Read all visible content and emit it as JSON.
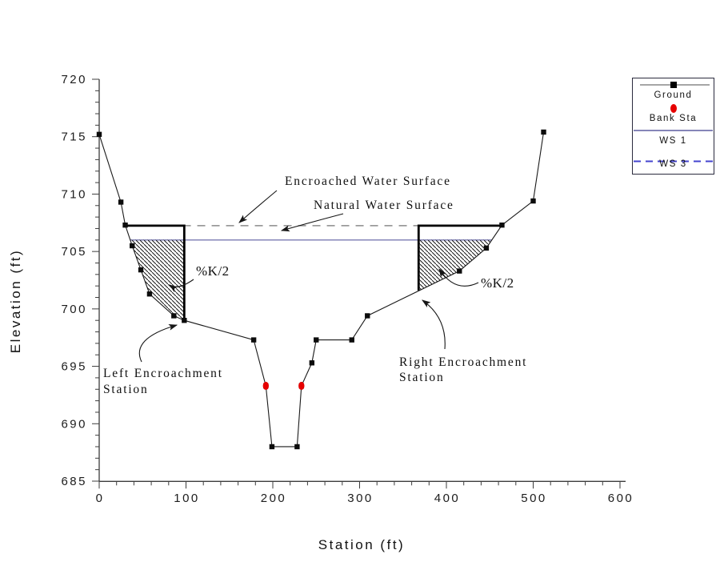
{
  "window": {
    "background": "#ffffff"
  },
  "chart_data": {
    "type": "line",
    "title": "",
    "xlabel": "Station (ft)",
    "ylabel": "Elevation (ft)",
    "xlim": [
      0,
      600
    ],
    "ylim": [
      685,
      720
    ],
    "x_major_ticks": [
      0,
      100,
      200,
      300,
      400,
      500,
      600
    ],
    "x_minor_step": 20,
    "y_major_ticks": [
      685,
      690,
      695,
      700,
      705,
      710,
      715,
      720
    ],
    "y_minor_step": 1,
    "grid": false,
    "legend_position": "top-right",
    "series": [
      {
        "name": "Ground",
        "type": "line-with-markers",
        "marker": "black-square",
        "color": "#1a1a1a",
        "points": [
          [
            0,
            715.2
          ],
          [
            25,
            709.3
          ],
          [
            30,
            707.3
          ],
          [
            38,
            705.5
          ],
          [
            48,
            703.4
          ],
          [
            58,
            701.3
          ],
          [
            86,
            699.4
          ],
          [
            98,
            699.0
          ],
          [
            178,
            697.3
          ],
          [
            192,
            693.3
          ],
          [
            199,
            688.0
          ],
          [
            228,
            688.0
          ],
          [
            233,
            693.3
          ],
          [
            245,
            695.3
          ],
          [
            250,
            697.3
          ],
          [
            291,
            697.3
          ],
          [
            309,
            699.4
          ],
          [
            415,
            703.3
          ],
          [
            446,
            705.3
          ],
          [
            464,
            707.3
          ],
          [
            500,
            709.4
          ],
          [
            512,
            715.4
          ]
        ]
      },
      {
        "name": "Bank Sta",
        "type": "markers",
        "marker": "red-ellipse",
        "color": "#e60000",
        "points": [
          [
            192,
            693.3
          ],
          [
            233,
            693.3
          ]
        ]
      },
      {
        "name": "WS 1",
        "type": "horizontal-line",
        "style": "solid",
        "color": "#8585b8",
        "elevation": 706.0,
        "from_station": 36,
        "to_station": 452
      },
      {
        "name": "WS 3",
        "type": "horizontal-line",
        "style": "dashed",
        "color": "#8a8a8a",
        "elevation": 707.25,
        "from_station": 30,
        "to_station": 368
      }
    ],
    "encroachments": {
      "left": {
        "station": 98,
        "top_elevation": 707.25,
        "ground_elevation": 699.0,
        "shoulder_station": 30
      },
      "right": {
        "station": 368,
        "top_elevation": 707.25,
        "ground_elevation": 701.6,
        "shoulder_station": 464
      }
    },
    "hatched_areas": [
      {
        "name": "left-conveyance-reduction",
        "polygon": [
          [
            36,
            706.0
          ],
          [
            38,
            705.5
          ],
          [
            48,
            703.4
          ],
          [
            58,
            701.3
          ],
          [
            86,
            699.4
          ],
          [
            98,
            699.0
          ],
          [
            98,
            706.0
          ]
        ]
      },
      {
        "name": "right-conveyance-reduction",
        "polygon": [
          [
            368,
            706.0
          ],
          [
            452,
            706.0
          ],
          [
            446,
            705.3
          ],
          [
            415,
            703.3
          ],
          [
            368,
            701.6
          ]
        ]
      }
    ],
    "annotations": [
      {
        "id": "encroached-water-surface",
        "lines": [
          "Encroached Water Surface"
        ]
      },
      {
        "id": "natural-water-surface",
        "lines": [
          "Natural Water Surface"
        ]
      },
      {
        "id": "pk2-left",
        "lines": [
          "%K/2"
        ]
      },
      {
        "id": "pk2-right",
        "lines": [
          "%K/2"
        ]
      },
      {
        "id": "left-encroachment-station",
        "lines": [
          "Left Encroachment",
          "Station"
        ]
      },
      {
        "id": "right-encroachment-station",
        "lines": [
          "Right Encroachment",
          "Station"
        ]
      }
    ]
  },
  "legend": {
    "items": [
      {
        "id": "ground",
        "label": "Ground",
        "symbol": "line-with-square-marker",
        "line_color": "#a6a6a6",
        "marker_color": "#000000"
      },
      {
        "id": "bank-sta",
        "label": "Bank Sta",
        "symbol": "red-ellipse",
        "color": "#e60000"
      },
      {
        "id": "ws1",
        "label": "WS 1",
        "symbol": "solid-line",
        "color": "#8585b8"
      },
      {
        "id": "ws3",
        "label": "WS 3",
        "symbol": "dashed-line",
        "color": "#4343cf"
      }
    ]
  }
}
